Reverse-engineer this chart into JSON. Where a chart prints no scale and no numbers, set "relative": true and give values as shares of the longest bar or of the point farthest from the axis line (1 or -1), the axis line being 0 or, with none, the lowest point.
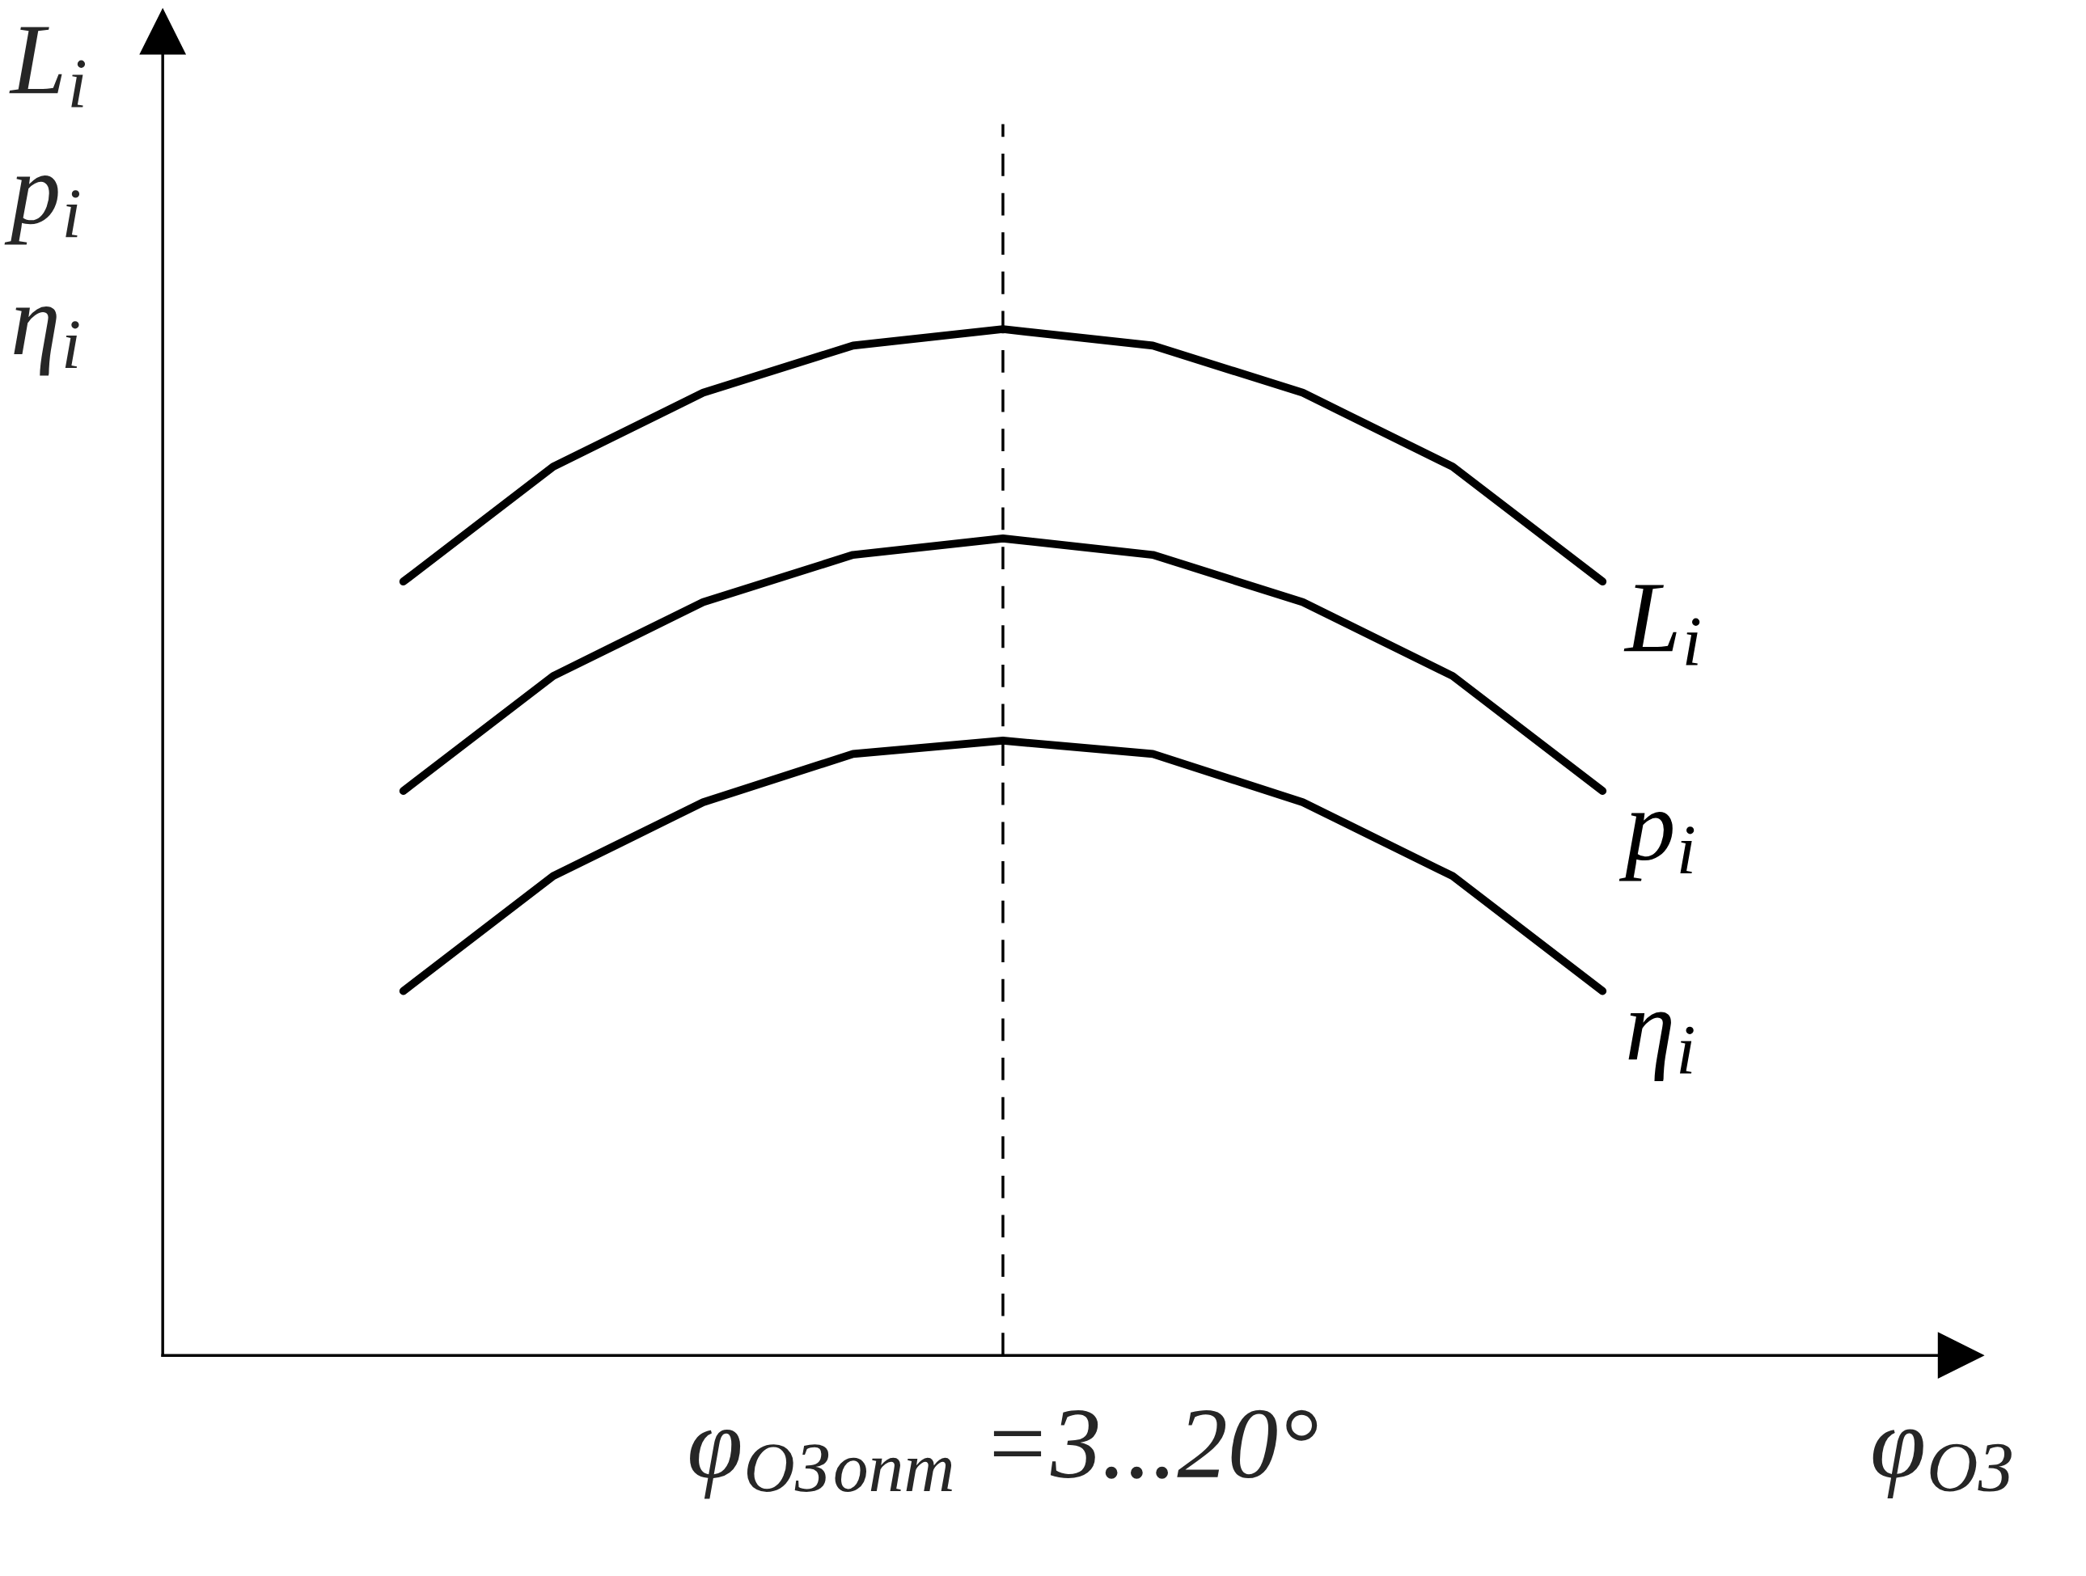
{
  "chart_data": {
    "type": "line",
    "relative": true,
    "categories": [
      null,
      null,
      null,
      null,
      null,
      null,
      null,
      null,
      null
    ],
    "ylabel": "L$_{i}$\np$_{i}$\nη$_{i}$",
    "xlabel": "φ$_{ОЗ}$",
    "series": [
      {
        "name": "L$_{i}$",
        "color": "#000000",
        "values": [
          0.754,
          0.866,
          0.938,
          0.984,
          1,
          0.984,
          0.938,
          0.866,
          0.754
        ]
      },
      {
        "name": "p$_{i}$",
        "color": "#000000",
        "values": [
          0.55,
          0.662,
          0.734,
          0.78,
          0.796,
          0.78,
          0.734,
          0.662,
          0.55
        ]
      },
      {
        "name": "η$_{i}$",
        "color": "#000000",
        "values": [
          0.355,
          0.467,
          0.539,
          0.586,
          0.599,
          0.586,
          0.539,
          0.467,
          0.355
        ]
      }
    ],
    "annotations": [
      "φ$_{ОЗ}$$_{опт}$ =3...20°"
    ],
    "legend": false,
    "marker": "none",
    "line_style": "solid"
  }
}
